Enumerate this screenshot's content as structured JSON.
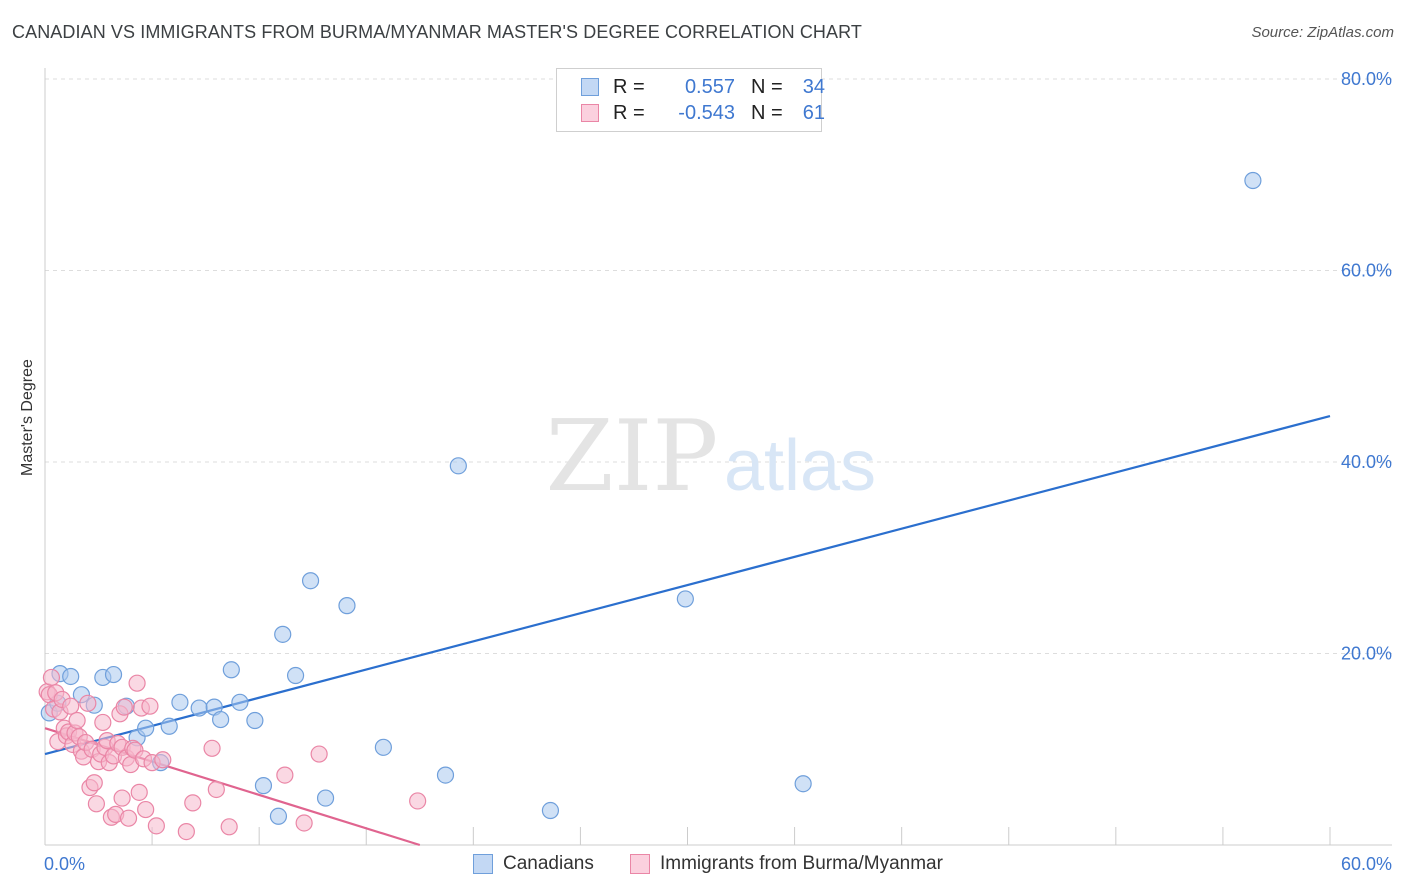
{
  "title": "CANADIAN VS IMMIGRANTS FROM BURMA/MYANMAR MASTER'S DEGREE CORRELATION CHART",
  "source": "Source: ZipAtlas.com",
  "watermark": {
    "zip": "ZIP",
    "atlas": "atlas"
  },
  "legend": {
    "series1": {
      "r_label": "R =",
      "r_value": "0.557",
      "n_label": "N =",
      "n_value": "34"
    },
    "series2": {
      "r_label": "R =",
      "r_value": "-0.543",
      "n_label": "N =",
      "n_value": "61"
    }
  },
  "bottom_legend": {
    "series1": "Canadians",
    "series2": "Immigrants from Burma/Myanmar"
  },
  "colors": {
    "blue_fill": "#a9c8ef",
    "blue_stroke": "#6f9fdb",
    "blue_line": "#2b6fce",
    "blue_text": "#3f78d0",
    "pink_fill": "#f6b8cc",
    "pink_stroke": "#ea86a6",
    "pink_line": "#e0648f",
    "grid": "#dddddd"
  },
  "chart_data": {
    "type": "scatter",
    "title": "CANADIAN VS IMMIGRANTS FROM BURMA/MYANMAR MASTER'S DEGREE CORRELATION CHART",
    "xlabel": "",
    "ylabel": "Master's Degree",
    "xlim": [
      0,
      60
    ],
    "ylim": [
      0,
      80
    ],
    "x_tick_labels": [
      "0.0%",
      "60.0%"
    ],
    "y_tick_values": [
      20,
      40,
      60,
      80
    ],
    "y_tick_labels": [
      "20.0%",
      "40.0%",
      "60.0%",
      "80.0%"
    ],
    "grid": true,
    "series": [
      {
        "name": "Canadians",
        "color": "#a9c8ef",
        "trend": {
          "x": [
            0,
            60
          ],
          "y": [
            9.5,
            44.8
          ]
        },
        "points": [
          [
            0.2,
            13.8
          ],
          [
            0.6,
            14.8
          ],
          [
            0.7,
            17.9
          ],
          [
            1.2,
            17.6
          ],
          [
            1.7,
            15.7
          ],
          [
            2.3,
            14.6
          ],
          [
            2.7,
            17.5
          ],
          [
            3.2,
            17.8
          ],
          [
            3.8,
            14.5
          ],
          [
            4.3,
            11.2
          ],
          [
            4.7,
            12.2
          ],
          [
            5.4,
            8.6
          ],
          [
            5.8,
            12.4
          ],
          [
            6.3,
            14.9
          ],
          [
            7.2,
            14.3
          ],
          [
            7.9,
            14.4
          ],
          [
            8.2,
            13.1
          ],
          [
            8.7,
            18.3
          ],
          [
            9.1,
            14.9
          ],
          [
            9.8,
            13.0
          ],
          [
            10.2,
            6.2
          ],
          [
            10.9,
            3.0
          ],
          [
            11.1,
            22.0
          ],
          [
            11.7,
            17.7
          ],
          [
            12.4,
            27.6
          ],
          [
            13.1,
            4.9
          ],
          [
            14.1,
            25.0
          ],
          [
            15.8,
            10.2
          ],
          [
            18.7,
            7.3
          ],
          [
            19.3,
            39.6
          ],
          [
            23.6,
            3.6
          ],
          [
            29.9,
            25.7
          ],
          [
            35.4,
            6.4
          ],
          [
            56.4,
            69.4
          ]
        ]
      },
      {
        "name": "Immigrants from Burma/Myanmar",
        "color": "#f6b8cc",
        "trend": {
          "x": [
            0,
            17.5
          ],
          "y": [
            12.2,
            0
          ]
        },
        "points": [
          [
            0.1,
            16.0
          ],
          [
            0.2,
            15.7
          ],
          [
            0.3,
            17.5
          ],
          [
            0.4,
            14.2
          ],
          [
            0.5,
            15.9
          ],
          [
            0.6,
            10.8
          ],
          [
            0.7,
            13.9
          ],
          [
            0.8,
            15.2
          ],
          [
            0.9,
            12.2
          ],
          [
            1.0,
            11.4
          ],
          [
            1.1,
            11.8
          ],
          [
            1.2,
            14.5
          ],
          [
            1.3,
            10.5
          ],
          [
            1.4,
            11.7
          ],
          [
            1.5,
            13.0
          ],
          [
            1.6,
            11.3
          ],
          [
            1.7,
            9.8
          ],
          [
            1.8,
            9.2
          ],
          [
            1.9,
            10.7
          ],
          [
            2.0,
            14.8
          ],
          [
            2.1,
            6.0
          ],
          [
            2.2,
            10.0
          ],
          [
            2.3,
            6.5
          ],
          [
            2.4,
            4.3
          ],
          [
            2.5,
            8.7
          ],
          [
            2.6,
            9.5
          ],
          [
            2.7,
            12.8
          ],
          [
            2.8,
            10.2
          ],
          [
            2.9,
            10.9
          ],
          [
            3.0,
            8.6
          ],
          [
            3.1,
            2.9
          ],
          [
            3.2,
            9.3
          ],
          [
            3.3,
            3.2
          ],
          [
            3.4,
            10.6
          ],
          [
            3.5,
            13.7
          ],
          [
            3.6,
            10.2
          ],
          [
            3.7,
            14.4
          ],
          [
            3.8,
            9.1
          ],
          [
            3.9,
            2.8
          ],
          [
            4.0,
            8.4
          ],
          [
            4.1,
            10.1
          ],
          [
            4.2,
            9.9
          ],
          [
            4.3,
            16.9
          ],
          [
            4.4,
            5.5
          ],
          [
            4.5,
            14.3
          ],
          [
            4.6,
            9.0
          ],
          [
            4.7,
            3.7
          ],
          [
            4.9,
            14.5
          ],
          [
            5.0,
            8.6
          ],
          [
            5.2,
            2.0
          ],
          [
            5.5,
            8.9
          ],
          [
            6.6,
            1.4
          ],
          [
            6.9,
            4.4
          ],
          [
            7.8,
            10.1
          ],
          [
            8.0,
            5.8
          ],
          [
            8.6,
            1.9
          ],
          [
            11.2,
            7.3
          ],
          [
            12.1,
            2.3
          ],
          [
            12.8,
            9.5
          ],
          [
            17.4,
            4.6
          ],
          [
            3.6,
            4.9
          ]
        ]
      }
    ]
  }
}
